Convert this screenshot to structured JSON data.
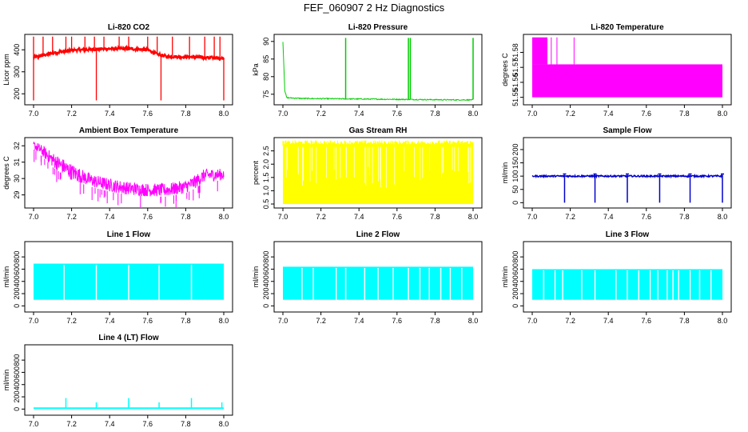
{
  "figure_title": "FEF_060907  2 Hz Diagnostics",
  "chart_data": [
    {
      "id": "co2",
      "type": "line",
      "title": "Li-820 CO2",
      "ylabel": "Licor ppm",
      "color": "#ff0000",
      "xlim": [
        7.0,
        8.0
      ],
      "ylim": [
        150,
        470
      ],
      "xticks": [
        7.0,
        7.2,
        7.4,
        7.6,
        7.8,
        8.0
      ],
      "yticks": [
        200,
        300,
        400
      ],
      "series": [
        {
          "name": "baseline",
          "x": [
            7.0,
            7.1,
            7.2,
            7.3,
            7.4,
            7.5,
            7.6,
            7.65,
            7.7,
            7.8,
            7.9,
            8.0
          ],
          "values": [
            365,
            385,
            398,
            402,
            405,
            405,
            400,
            380,
            370,
            368,
            365,
            362
          ]
        }
      ],
      "spikes_up": [
        7.0,
        7.05,
        7.1,
        7.17,
        7.2,
        7.27,
        7.32,
        7.37,
        7.45,
        7.5,
        7.6,
        7.65,
        7.73,
        7.82,
        7.9,
        7.95,
        7.98
      ],
      "spikes_down": [
        7.0,
        7.33,
        7.67,
        8.0
      ]
    },
    {
      "id": "pressure",
      "type": "line",
      "title": "Li-820 Pressure",
      "ylabel": "kPa",
      "color": "#00cc00",
      "xlim": [
        7.0,
        8.0
      ],
      "ylim": [
        72,
        92
      ],
      "xticks": [
        7.0,
        7.2,
        7.4,
        7.6,
        7.8,
        8.0
      ],
      "yticks": [
        75,
        80,
        85,
        90
      ],
      "series": [
        {
          "name": "baseline",
          "x": [
            7.0,
            7.01,
            7.02,
            7.1,
            7.3,
            7.5,
            7.7,
            7.9,
            8.0
          ],
          "values": [
            90,
            76,
            74,
            73.8,
            73.7,
            73.6,
            73.5,
            73.4,
            73.4
          ]
        }
      ],
      "spikes_up": [
        7.33,
        7.66,
        7.67,
        8.0
      ]
    },
    {
      "id": "temperature",
      "type": "area",
      "title": "Li-820 Temperature",
      "ylabel": "degrees C",
      "color": "#ff00ff",
      "xlim": [
        7.0,
        8.0
      ],
      "ylim": [
        51.545,
        51.592
      ],
      "xticks": [
        7.0,
        7.2,
        7.4,
        7.6,
        7.8,
        8.0
      ],
      "yticks": [
        51.55,
        51.56,
        51.57,
        51.58
      ],
      "band": {
        "low": 51.55,
        "high": 51.572,
        "upper_block_high": 51.59,
        "upper_block_end": 7.08
      },
      "spikes_up": [
        7.1,
        7.13,
        7.22
      ]
    },
    {
      "id": "ambient",
      "type": "line",
      "title": "Ambient Box Temperature",
      "ylabel": "degrees C",
      "color": "#ff00ff",
      "xlim": [
        7.0,
        8.0
      ],
      "ylim": [
        28.2,
        32.5
      ],
      "xticks": [
        7.0,
        7.2,
        7.4,
        7.6,
        7.8,
        8.0
      ],
      "yticks": [
        29,
        30,
        31,
        32
      ],
      "series": [
        {
          "name": "upper",
          "x": [
            7.0,
            7.05,
            7.1,
            7.2,
            7.3,
            7.4,
            7.5,
            7.6,
            7.7,
            7.8,
            7.85,
            7.9,
            8.0
          ],
          "values": [
            32.3,
            32.0,
            31.6,
            30.9,
            30.3,
            30.0,
            29.8,
            29.7,
            29.7,
            29.9,
            30.2,
            30.6,
            30.6
          ]
        },
        {
          "name": "lower",
          "x": [
            7.0,
            7.05,
            7.1,
            7.2,
            7.3,
            7.4,
            7.5,
            7.6,
            7.7,
            7.8,
            7.85,
            7.9,
            8.0
          ],
          "values": [
            31.8,
            31.3,
            30.7,
            29.9,
            29.5,
            29.2,
            29.0,
            28.9,
            28.9,
            29.1,
            29.4,
            29.8,
            29.9
          ]
        }
      ]
    },
    {
      "id": "rh",
      "type": "area",
      "title": "Gas Stream RH",
      "ylabel": "percent",
      "color": "#ffff00",
      "xlim": [
        7.0,
        8.0
      ],
      "ylim": [
        0.35,
        3.0
      ],
      "xticks": [
        7.0,
        7.2,
        7.4,
        7.6,
        7.8,
        8.0
      ],
      "yticks": [
        0.5,
        1.0,
        1.5,
        2.0,
        2.5
      ],
      "band": {
        "low": 0.5,
        "high": 2.7
      }
    },
    {
      "id": "sample",
      "type": "line",
      "title": "Sample Flow",
      "ylabel": "ml/min",
      "color": "#0000cc",
      "xlim": [
        7.0,
        8.0
      ],
      "ylim": [
        -20,
        245
      ],
      "xticks": [
        7.0,
        7.2,
        7.4,
        7.6,
        7.8,
        8.0
      ],
      "yticks": [
        0,
        50,
        100,
        150,
        200
      ],
      "series": [
        {
          "name": "baseline",
          "x": [
            7.0,
            8.0
          ],
          "values": [
            100,
            100
          ]
        }
      ],
      "spikes_down": [
        7.17,
        7.33,
        7.5,
        7.67,
        7.83,
        8.0
      ]
    },
    {
      "id": "line1",
      "type": "area",
      "title": "Line 1 Flow",
      "ylabel": "ml/min",
      "color": "#00ffff",
      "xlim": [
        7.0,
        8.0
      ],
      "ylim": [
        -100,
        1050
      ],
      "xticks": [
        7.0,
        7.2,
        7.4,
        7.6,
        7.8,
        8.0
      ],
      "yticks": [
        0,
        200,
        400,
        600,
        800
      ],
      "band": {
        "low": 100,
        "high": 690
      },
      "gaps": [
        7.16,
        7.33,
        7.5,
        7.66,
        7.83
      ]
    },
    {
      "id": "line2",
      "type": "area",
      "title": "Line 2 Flow",
      "ylabel": "ml/min",
      "color": "#00ffff",
      "xlim": [
        7.0,
        8.0
      ],
      "ylim": [
        -100,
        1050
      ],
      "xticks": [
        7.0,
        7.2,
        7.4,
        7.6,
        7.8,
        8.0
      ],
      "yticks": [
        0,
        200,
        400,
        600,
        800
      ],
      "band": {
        "low": 100,
        "high": 640
      },
      "gaps": [
        7.1,
        7.16,
        7.28,
        7.33,
        7.43,
        7.5,
        7.58,
        7.66,
        7.72,
        7.77,
        7.83,
        7.88,
        7.94
      ]
    },
    {
      "id": "line3",
      "type": "area",
      "title": "Line 3 Flow",
      "ylabel": "ml/min",
      "color": "#00ffff",
      "xlim": [
        7.0,
        8.0
      ],
      "ylim": [
        -100,
        1050
      ],
      "xticks": [
        7.0,
        7.2,
        7.4,
        7.6,
        7.8,
        8.0
      ],
      "yticks": [
        0,
        200,
        400,
        600,
        800
      ],
      "band": {
        "low": 100,
        "high": 600
      },
      "gaps": [
        7.06,
        7.12,
        7.16,
        7.26,
        7.33,
        7.44,
        7.5,
        7.56,
        7.62,
        7.66,
        7.71,
        7.74,
        7.77,
        7.83,
        7.88,
        7.94
      ]
    },
    {
      "id": "line4",
      "type": "line",
      "title": "Line 4 (LT) Flow",
      "ylabel": "ml/min",
      "color": "#00ffff",
      "xlim": [
        7.0,
        8.0
      ],
      "ylim": [
        -100,
        1050
      ],
      "xticks": [
        7.0,
        7.2,
        7.4,
        7.6,
        7.8,
        8.0
      ],
      "yticks": [
        0,
        200,
        400,
        600,
        800
      ],
      "series": [
        {
          "name": "baseline",
          "x": [
            7.0,
            8.0
          ],
          "values": [
            15,
            15
          ]
        }
      ],
      "spikes_up": [
        7.17,
        7.33,
        7.5,
        7.66,
        7.83,
        7.99
      ],
      "spike_heights": [
        180,
        110,
        180,
        110,
        180,
        110
      ]
    }
  ]
}
